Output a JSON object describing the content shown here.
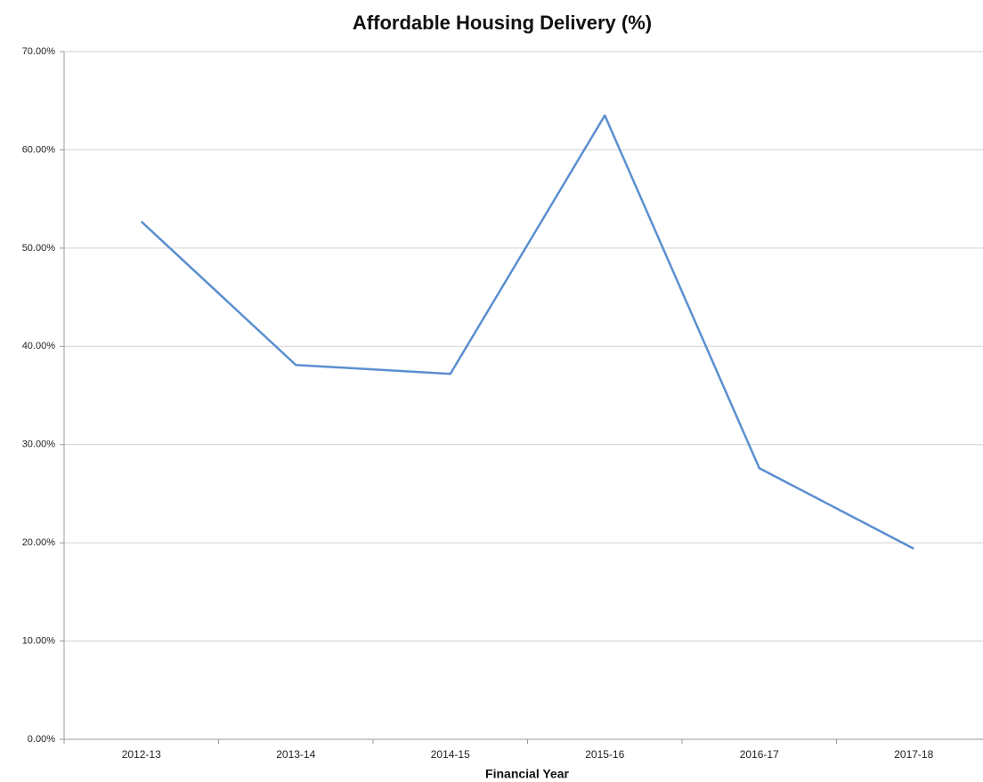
{
  "chart_data": {
    "type": "line",
    "title": "Affordable Housing Delivery (%)",
    "x_label": "Financial Year",
    "categories": [
      "2012-13",
      "2013-14",
      "2014-15",
      "2015-16",
      "2016-17",
      "2017-18"
    ],
    "values": [
      52.7,
      38.1,
      37.2,
      63.5,
      27.6,
      19.4
    ],
    "color": "#5b8fd0",
    "ylim": [
      0,
      70
    ],
    "yticks": [
      {
        "value": 0,
        "label": "0.00%"
      },
      {
        "value": 10,
        "label": "10.00%"
      },
      {
        "value": 20,
        "label": "20.00%"
      },
      {
        "value": 30,
        "label": "30.00%"
      },
      {
        "value": 40,
        "label": "40.00%"
      },
      {
        "value": 50,
        "label": "50.00%"
      },
      {
        "value": 60,
        "label": "60.00%"
      },
      {
        "value": 70,
        "label": "70.00%"
      }
    ],
    "grid": true
  }
}
